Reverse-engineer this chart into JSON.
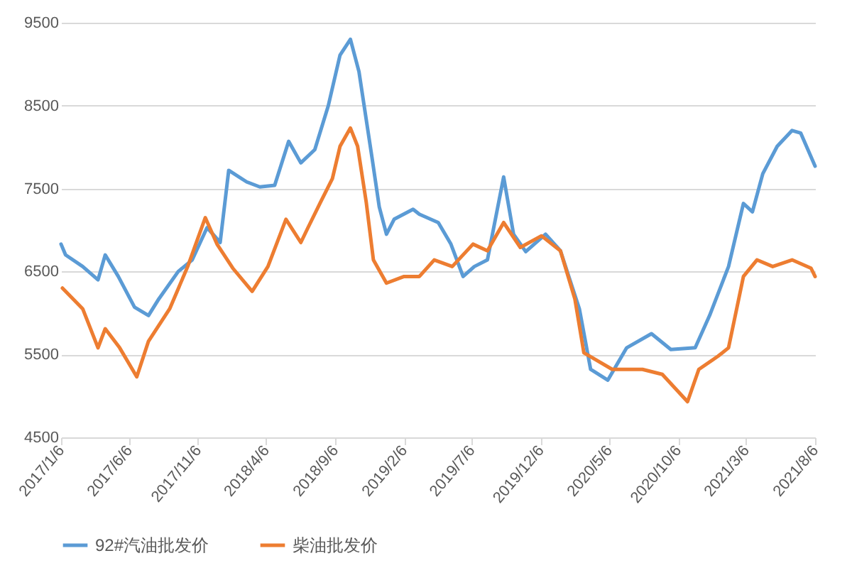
{
  "chart_data": {
    "type": "line",
    "ylim": [
      4500,
      9500
    ],
    "yticks": [
      4500,
      5500,
      6500,
      7500,
      8500,
      9500
    ],
    "xlim": [
      "2017-01-06",
      "2021-08-06"
    ],
    "xticks": [
      {
        "value": "2017-01-06",
        "label": "2017/1/6"
      },
      {
        "value": "2017-06-06",
        "label": "2017/6/6"
      },
      {
        "value": "2017-11-06",
        "label": "2017/11/6"
      },
      {
        "value": "2018-04-06",
        "label": "2018/4/6"
      },
      {
        "value": "2018-09-06",
        "label": "2018/9/6"
      },
      {
        "value": "2019-02-06",
        "label": "2019/2/6"
      },
      {
        "value": "2019-07-06",
        "label": "2019/7/6"
      },
      {
        "value": "2019-12-06",
        "label": "2019/12/6"
      },
      {
        "value": "2020-05-06",
        "label": "2020/5/6"
      },
      {
        "value": "2020-10-06",
        "label": "2020/10/6"
      },
      {
        "value": "2021-03-06",
        "label": "2021/3/6"
      },
      {
        "value": "2021-08-06",
        "label": "2021/8/6"
      }
    ],
    "grid": "y",
    "legend": "bottom",
    "marker": "none",
    "series": [
      {
        "name": "92#汽油批发价",
        "color": "#5b9bd5",
        "x": [
          "2017-01-06",
          "2017-01-16",
          "2017-02-23",
          "2017-03-29",
          "2017-04-14",
          "2017-05-13",
          "2017-06-18",
          "2017-07-19",
          "2017-08-11",
          "2017-09-23",
          "2017-10-24",
          "2017-11-26",
          "2017-12-25",
          "2018-01-13",
          "2018-02-22",
          "2018-03-23",
          "2018-04-25",
          "2018-05-26",
          "2018-06-22",
          "2018-07-23",
          "2018-08-22",
          "2018-09-17",
          "2018-10-10",
          "2018-10-29",
          "2018-11-27",
          "2018-12-13",
          "2018-12-29",
          "2019-01-15",
          "2019-02-26",
          "2019-03-12",
          "2019-04-23",
          "2019-05-21",
          "2019-06-17",
          "2019-07-12",
          "2019-08-10",
          "2019-09-15",
          "2019-10-07",
          "2019-11-03",
          "2019-12-17",
          "2020-01-19",
          "2020-03-01",
          "2020-03-26",
          "2020-05-03",
          "2020-06-14",
          "2020-08-08",
          "2020-09-20",
          "2020-11-13",
          "2020-12-15",
          "2021-01-26",
          "2021-02-28",
          "2021-03-20",
          "2021-04-12",
          "2021-05-14",
          "2021-06-16",
          "2021-07-05",
          "2021-08-06"
        ],
        "values": [
          6830,
          6700,
          6560,
          6400,
          6700,
          6440,
          6070,
          5970,
          6170,
          6500,
          6640,
          7030,
          6850,
          7720,
          7580,
          7520,
          7540,
          8070,
          7810,
          7970,
          8500,
          9110,
          9300,
          8910,
          7870,
          7280,
          6950,
          7130,
          7250,
          7190,
          7090,
          6830,
          6440,
          6560,
          6640,
          7640,
          6950,
          6740,
          6950,
          6750,
          6050,
          5320,
          5190,
          5580,
          5750,
          5560,
          5580,
          5970,
          6560,
          7320,
          7220,
          7680,
          8010,
          8200,
          8170,
          7770
        ]
      },
      {
        "name": "柴油批发价",
        "color": "#ed7d31",
        "x": [
          "2017-01-09",
          "2017-02-23",
          "2017-03-29",
          "2017-04-14",
          "2017-05-16",
          "2017-06-23",
          "2017-07-19",
          "2017-09-04",
          "2017-10-14",
          "2017-11-22",
          "2017-12-18",
          "2018-01-22",
          "2018-03-06",
          "2018-04-10",
          "2018-05-20",
          "2018-06-22",
          "2018-07-08",
          "2018-08-05",
          "2018-08-31",
          "2018-09-17",
          "2018-10-10",
          "2018-10-26",
          "2018-11-14",
          "2018-11-30",
          "2018-12-29",
          "2019-02-06",
          "2019-03-12",
          "2019-04-14",
          "2019-05-24",
          "2019-07-09",
          "2019-08-10",
          "2019-09-15",
          "2019-10-22",
          "2019-12-08",
          "2020-01-19",
          "2020-02-20",
          "2020-03-11",
          "2020-05-13",
          "2020-07-19",
          "2020-09-01",
          "2020-10-27",
          "2020-11-21",
          "2021-01-03",
          "2021-01-26",
          "2021-02-28",
          "2021-03-30",
          "2021-05-04",
          "2021-06-16",
          "2021-07-28",
          "2021-08-06"
        ],
        "values": [
          6300,
          6050,
          5580,
          5810,
          5580,
          5230,
          5660,
          6050,
          6560,
          7150,
          6830,
          6540,
          6260,
          6560,
          7130,
          6850,
          7030,
          7340,
          7620,
          8010,
          8230,
          8010,
          7340,
          6640,
          6360,
          6440,
          6440,
          6640,
          6560,
          6830,
          6750,
          7090,
          6790,
          6930,
          6750,
          6170,
          5520,
          5320,
          5320,
          5260,
          4930,
          5320,
          5480,
          5580,
          6440,
          6640,
          6560,
          6640,
          6540,
          6440
        ]
      }
    ]
  }
}
